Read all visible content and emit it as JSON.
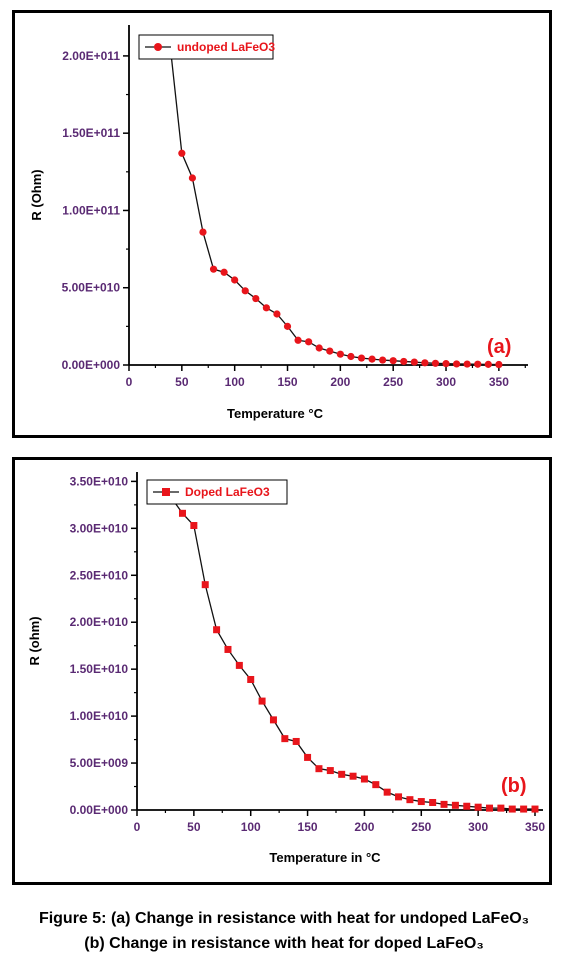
{
  "chart_data": [
    {
      "type": "line",
      "panel_tag": "(a)",
      "xlabel": "Temperature °C",
      "ylabel": "R (Ohm)",
      "xlim": [
        0,
        370
      ],
      "ylim": [
        0,
        220000000000
      ],
      "xticks": [
        0,
        50,
        100,
        150,
        200,
        250,
        300,
        350
      ],
      "yticks": [
        0,
        50000000000,
        100000000000,
        150000000000,
        200000000000
      ],
      "ytick_labels": [
        "0.00E+000",
        "5.00E+010",
        "1.00E+011",
        "1.50E+011",
        "2.00E+011"
      ],
      "legend_position": "top-left",
      "marker": "circle",
      "series": [
        {
          "name": "undoped LaFeO3",
          "color": "#e8151b",
          "x": [
            40,
            50,
            60,
            70,
            80,
            90,
            100,
            110,
            120,
            130,
            140,
            150,
            160,
            170,
            180,
            190,
            200,
            210,
            220,
            230,
            240,
            250,
            260,
            270,
            280,
            290,
            300,
            310,
            320,
            330,
            340,
            350
          ],
          "y": [
            200000000000,
            137000000000,
            121000000000,
            86000000000,
            62000000000,
            60000000000,
            55000000000,
            48000000000,
            43000000000,
            37000000000,
            33000000000,
            25000000000,
            16000000000,
            15000000000,
            11000000000,
            9000000000,
            7000000000,
            5500000000,
            4500000000,
            3800000000,
            3200000000,
            2800000000,
            2300000000,
            1900000000,
            1400000000,
            1100000000,
            900000000,
            700000000,
            600000000,
            500000000,
            400000000,
            300000000
          ]
        }
      ]
    },
    {
      "type": "line",
      "panel_tag": "(b)",
      "xlabel": "Temperature in °C",
      "ylabel": "R (ohm)",
      "xlim": [
        0,
        350
      ],
      "ylim": [
        0,
        36000000000
      ],
      "xticks": [
        0,
        50,
        100,
        150,
        200,
        250,
        300,
        350
      ],
      "yticks": [
        0,
        5000000000,
        10000000000,
        15000000000,
        20000000000,
        25000000000,
        30000000000,
        35000000000
      ],
      "ytick_labels": [
        "0.00E+000",
        "5.00E+009",
        "1.00E+010",
        "1.50E+010",
        "2.00E+010",
        "2.50E+010",
        "3.00E+010",
        "3.50E+010"
      ],
      "legend_position": "top-left",
      "marker": "square",
      "series": [
        {
          "name": "Doped LaFeO3",
          "color": "#e8151b",
          "x": [
            30,
            40,
            50,
            60,
            70,
            80,
            90,
            100,
            110,
            120,
            130,
            140,
            150,
            160,
            170,
            180,
            190,
            200,
            210,
            220,
            230,
            240,
            250,
            260,
            270,
            280,
            290,
            300,
            310,
            320,
            330,
            340,
            350
          ],
          "y": [
            33300000000,
            31600000000,
            30300000000,
            24000000000,
            19200000000,
            17100000000,
            15400000000,
            13900000000,
            11600000000,
            9600000000,
            7600000000,
            7300000000,
            5600000000,
            4400000000,
            4200000000,
            3800000000,
            3600000000,
            3300000000,
            2700000000,
            1900000000,
            1400000000,
            1100000000,
            900000000,
            800000000,
            600000000,
            500000000,
            400000000,
            300000000,
            200000000,
            200000000,
            100000000,
            100000000,
            100000000
          ]
        }
      ]
    }
  ],
  "caption": {
    "line1": "Figure 5: (a) Change in resistance with heat for undoped LaFeO₃",
    "line2": "(b) Change in resistance with heat for doped LaFeO₃"
  },
  "colors": {
    "series": "#e8151b",
    "panel_tag": "#e8151b",
    "ytick_text": "#5a2a73",
    "xtick_text": "#5a2a73",
    "axis": "#000000"
  }
}
